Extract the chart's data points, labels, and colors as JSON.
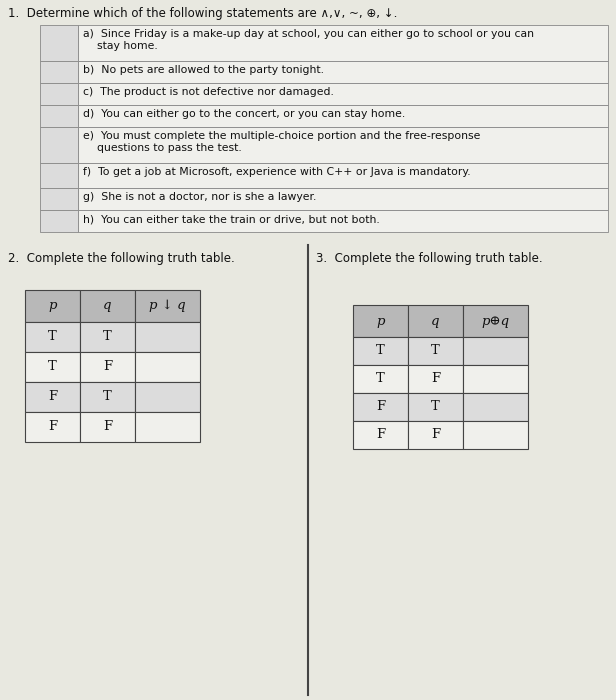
{
  "title1": "1.  Determine which of the following statements are ∧,∨, ~, ⊕, ↓.",
  "statements": [
    "a)  Since Friday is a make-up day at school, you can either go to school or you can\n    stay home.",
    "b)  No pets are allowed to the party tonight.",
    "c)  The product is not defective nor damaged.",
    "d)  You can either go to the concert, or you can stay home.",
    "e)  You must complete the multiple-choice portion and the free-response\n    questions to pass the test.",
    "f)  To get a job at Microsoft, experience with C++ or Java is mandatory.",
    "g)  She is not a doctor, nor is she a lawyer.",
    "h)  You can either take the train or drive, but not both."
  ],
  "q2_title": "2.  Complete the following truth table.",
  "q2_headers": [
    "p",
    "q",
    "p ↓ q"
  ],
  "q2_rows": [
    [
      "T",
      "T",
      ""
    ],
    [
      "T",
      "F",
      ""
    ],
    [
      "F",
      "T",
      ""
    ],
    [
      "F",
      "F",
      ""
    ]
  ],
  "q3_title": "3.  Complete the following truth table.",
  "q3_headers": [
    "p",
    "q",
    "p⊕q"
  ],
  "q3_rows": [
    [
      "T",
      "T",
      ""
    ],
    [
      "T",
      "F",
      ""
    ],
    [
      "F",
      "T",
      ""
    ],
    [
      "F",
      "F",
      ""
    ]
  ],
  "bg_color": "#e8e8e0",
  "table_header_bg": "#b8b8b8",
  "table_row_light": "#dcdcdc",
  "table_row_white": "#f0f0ec",
  "border_color": "#888888",
  "text_color": "#111111",
  "font_size_title": 8.5,
  "font_size_body": 7.8,
  "font_size_table_hdr": 9.5,
  "font_size_table_body": 9.5
}
